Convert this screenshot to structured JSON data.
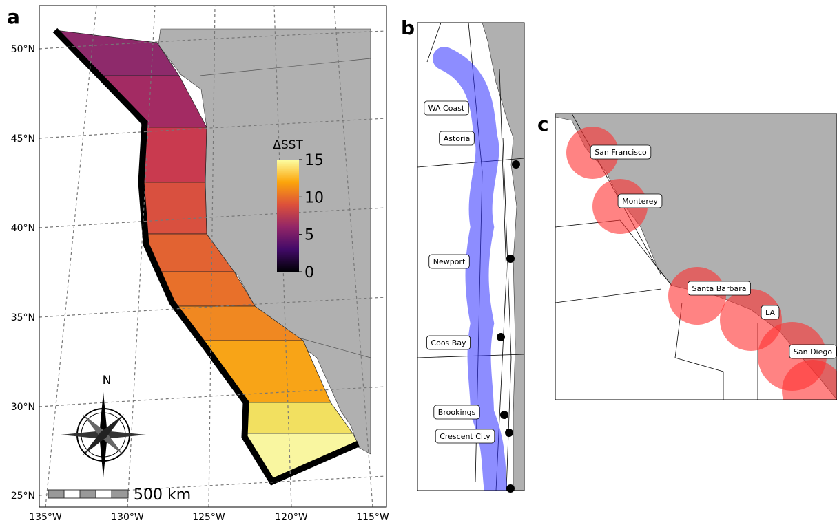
{
  "panels": [
    {
      "label": "a",
      "longitude_labels": [
        "135°W",
        "130°W",
        "125°W",
        "120°W",
        "115°W"
      ],
      "latitude_labels": [
        "50°N",
        "45°N",
        "40°N",
        "35°N",
        "30°N",
        "25°N"
      ],
      "colorbar": {
        "title": "ΔSST",
        "lim": [
          0,
          15
        ],
        "ticks": [
          0,
          5,
          10,
          15
        ]
      },
      "compass_label": "N",
      "scale_bar_label": "500 km"
    },
    {
      "label": "b",
      "places": [
        "WA Coast",
        "Astoria",
        "Newport",
        "Coos Bay",
        "Brookings",
        "Crescent City"
      ]
    },
    {
      "label": "c",
      "places": [
        "San Francisco",
        "Monterey",
        "Santa Barbara",
        "LA",
        "San Diego"
      ]
    }
  ]
}
